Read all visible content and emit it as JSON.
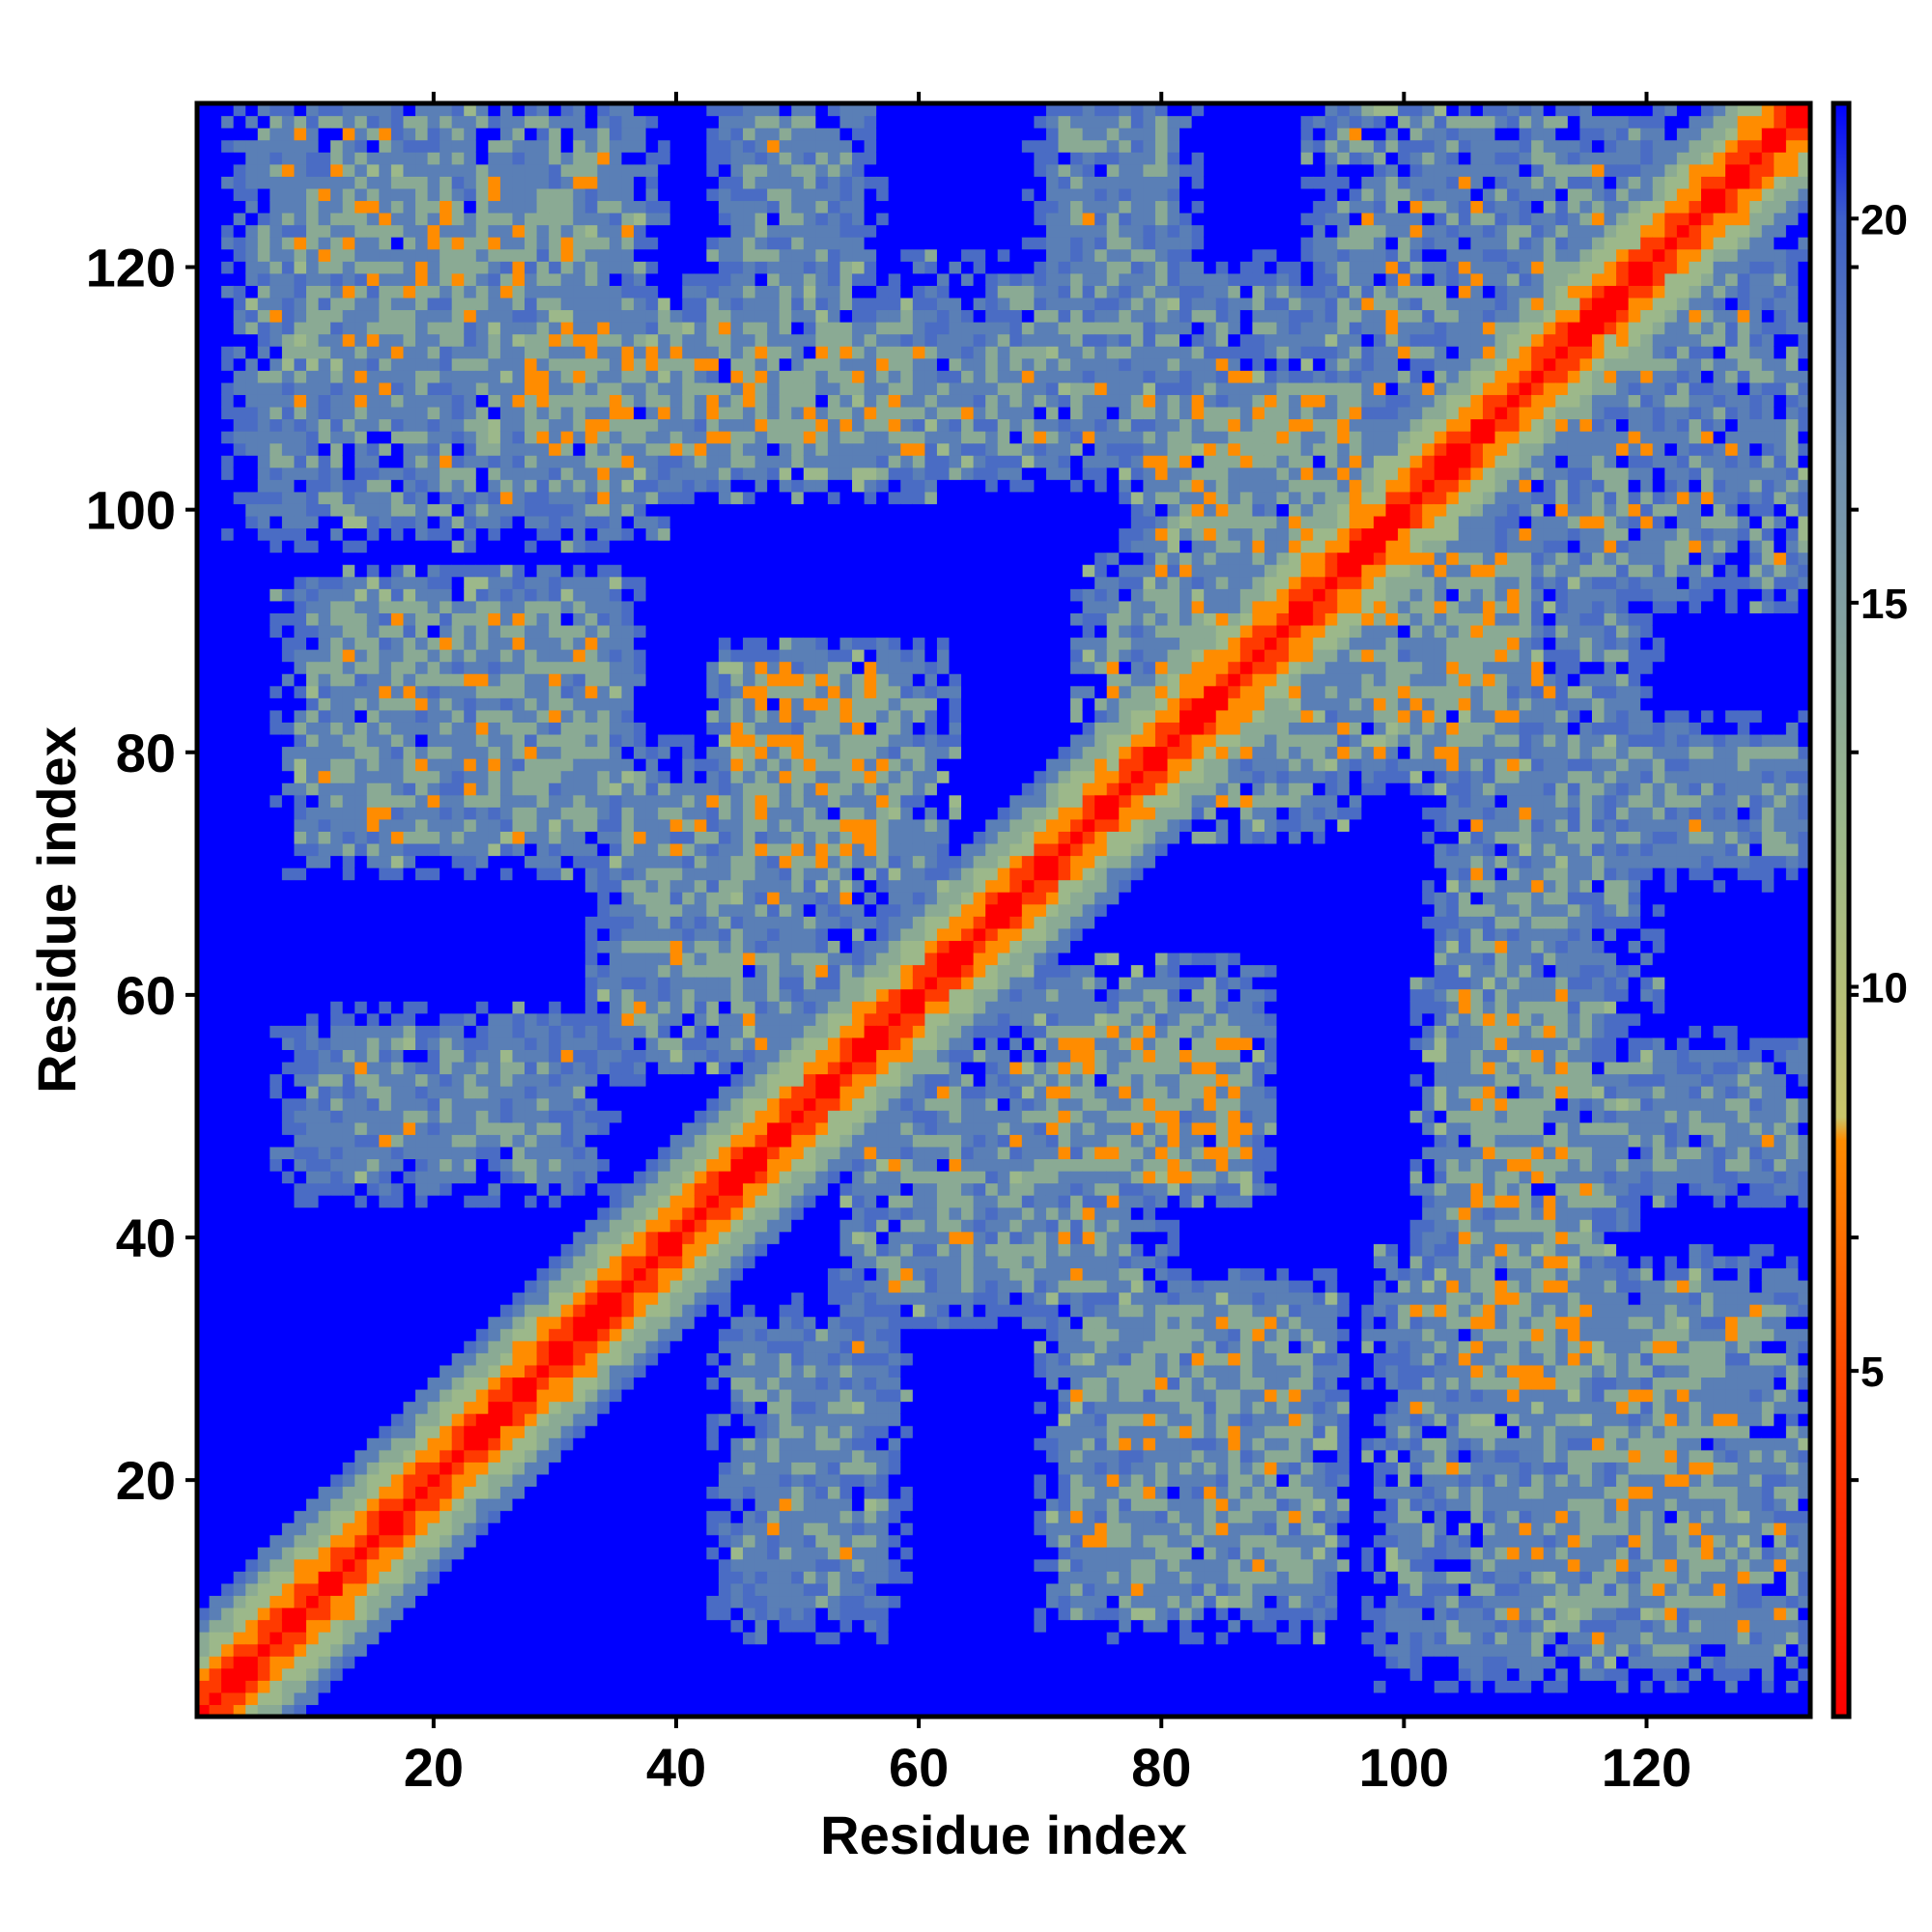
{
  "chart_data": {
    "type": "heatmap",
    "title": "",
    "xlabel": "Residue index",
    "ylabel": "Residue index",
    "xlim": [
      1,
      133
    ],
    "ylim": [
      1,
      133
    ],
    "n_residues": 133,
    "x_ticks": [
      20,
      40,
      60,
      80,
      100,
      120
    ],
    "y_ticks": [
      20,
      40,
      60,
      80,
      100,
      120
    ],
    "colorbar": {
      "range": [
        0.5,
        21.5
      ],
      "ticks": [
        5,
        10,
        15,
        20
      ],
      "palette": {
        "very_close": "#ff0000",
        "close": "#ff8c00",
        "mid": "#9cb88a",
        "far": "#5a7fb6",
        "background": "#0000ff"
      },
      "stops": [
        {
          "value": 0.5,
          "color": "#ff0000"
        },
        {
          "value": 5.0,
          "color": "#ff4800"
        },
        {
          "value": 8.0,
          "color": "#ff8c00"
        },
        {
          "value": 8.3,
          "color": "#c9c46a"
        },
        {
          "value": 12.0,
          "color": "#9cb88a"
        },
        {
          "value": 17.0,
          "color": "#6e8eb2"
        },
        {
          "value": 20.0,
          "color": "#3d5fc8"
        },
        {
          "value": 21.5,
          "color": "#0000ff"
        }
      ]
    },
    "diagonal": {
      "half_width_residues": 8
    },
    "contact_bands": [
      {
        "x": [
          10,
          32
        ],
        "y": [
          113,
          126
        ],
        "strength": 0.8
      },
      {
        "x": [
          28,
          54
        ],
        "y": [
          105,
          114
        ],
        "strength": 0.9
      },
      {
        "x": [
          46,
          70
        ],
        "y": [
          106,
          113
        ],
        "strength": 0.8
      },
      {
        "x": [
          46,
          54
        ],
        "y": [
          106,
          132
        ],
        "strength": 0.6
      },
      {
        "x": [
          73,
          80
        ],
        "y": [
          110,
          132
        ],
        "strength": 0.6
      },
      {
        "x": [
          80,
          96
        ],
        "y": [
          95,
          108
        ],
        "strength": 1.0
      },
      {
        "x": [
          95,
          120
        ],
        "y": [
          110,
          132
        ],
        "strength": 0.7
      },
      {
        "x": [
          12,
          34
        ],
        "y": [
          75,
          92
        ],
        "strength": 0.7
      },
      {
        "x": [
          46,
          60
        ],
        "y": [
          70,
          86
        ],
        "strength": 0.9
      },
      {
        "x": [
          36,
          54
        ],
        "y": [
          58,
          75
        ],
        "strength": 0.7
      },
      {
        "x": [
          76,
          90
        ],
        "y": [
          80,
          93
        ],
        "strength": 0.9
      },
      {
        "x": [
          96,
          110
        ],
        "y": [
          84,
          96
        ],
        "strength": 0.9
      },
      {
        "x": [
          105,
          118
        ],
        "y": [
          60,
          92
        ],
        "strength": 0.6
      },
      {
        "x": [
          114,
          132
        ],
        "y": [
          72,
          80
        ],
        "strength": 0.5
      },
      {
        "x": [
          12,
          30
        ],
        "y": [
          48,
          54
        ],
        "strength": 0.6
      },
      {
        "x": [
          72,
          86
        ],
        "y": [
          46,
          56
        ],
        "strength": 1.0
      },
      {
        "x": [
          104,
          132
        ],
        "y": [
          46,
          52
        ],
        "strength": 0.6
      },
      {
        "x": [
          56,
          78
        ],
        "y": [
          36,
          48
        ],
        "strength": 0.6
      },
      {
        "x": [
          46,
          56
        ],
        "y": [
          10,
          32
        ],
        "strength": 0.6
      },
      {
        "x": [
          73,
          92
        ],
        "y": [
          10,
          34
        ],
        "strength": 0.7
      },
      {
        "x": [
          100,
          132
        ],
        "y": [
          6,
          36
        ],
        "strength": 0.7
      },
      {
        "x": [
          104,
          114
        ],
        "y": [
          28,
          36
        ],
        "strength": 1.0
      },
      {
        "x": [
          104,
          116
        ],
        "y": [
          36,
          60
        ],
        "strength": 0.8
      }
    ]
  }
}
